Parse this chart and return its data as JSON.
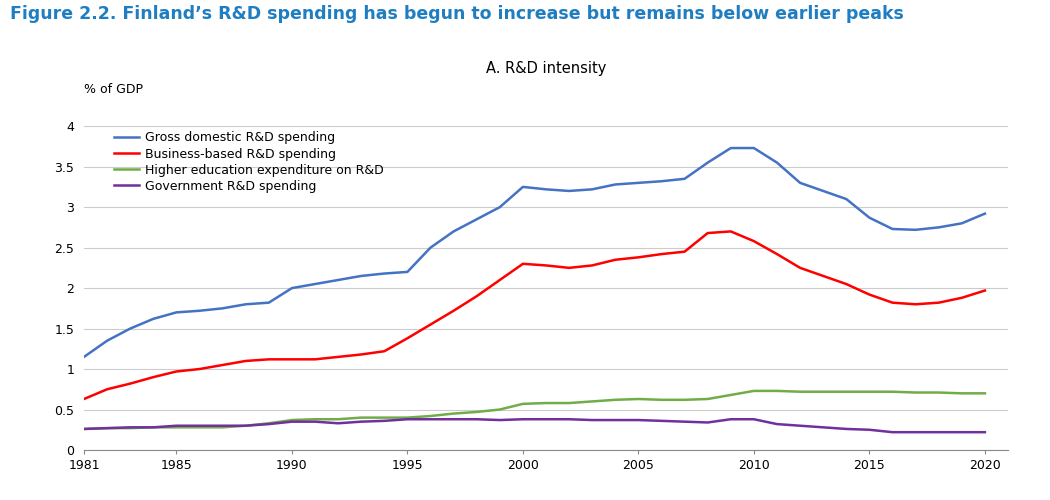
{
  "title": "Figure 2.2. Finland’s R&D spending has begun to increase but remains below earlier peaks",
  "subtitle": "A. R&D intensity",
  "ylabel": "% of GDP",
  "title_color": "#1F7EC2",
  "subtitle_color": "#000000",
  "ylim": [
    0,
    4.2
  ],
  "yticks": [
    0,
    0.5,
    1.0,
    1.5,
    2.0,
    2.5,
    3.0,
    3.5,
    4.0
  ],
  "xlim": [
    1981,
    2021
  ],
  "xticks": [
    1981,
    1985,
    1990,
    1995,
    2000,
    2005,
    2010,
    2015,
    2020
  ],
  "series": {
    "gross_domestic": {
      "label": "Gross domestic R&D spending",
      "color": "#4472C4",
      "years": [
        1981,
        1982,
        1983,
        1984,
        1985,
        1986,
        1987,
        1988,
        1989,
        1990,
        1991,
        1992,
        1993,
        1994,
        1995,
        1996,
        1997,
        1998,
        1999,
        2000,
        2001,
        2002,
        2003,
        2004,
        2005,
        2006,
        2007,
        2008,
        2009,
        2010,
        2011,
        2012,
        2013,
        2014,
        2015,
        2016,
        2017,
        2018,
        2019,
        2020
      ],
      "values": [
        1.15,
        1.35,
        1.5,
        1.62,
        1.7,
        1.72,
        1.75,
        1.8,
        1.82,
        2.0,
        2.05,
        2.1,
        2.15,
        2.18,
        2.2,
        2.5,
        2.7,
        2.85,
        3.0,
        3.25,
        3.22,
        3.2,
        3.22,
        3.28,
        3.3,
        3.32,
        3.35,
        3.55,
        3.73,
        3.73,
        3.55,
        3.3,
        3.2,
        3.1,
        2.87,
        2.73,
        2.72,
        2.75,
        2.8,
        2.92
      ]
    },
    "business": {
      "label": "Business-based R&D spending",
      "color": "#FF0000",
      "years": [
        1981,
        1982,
        1983,
        1984,
        1985,
        1986,
        1987,
        1988,
        1989,
        1990,
        1991,
        1992,
        1993,
        1994,
        1995,
        1996,
        1997,
        1998,
        1999,
        2000,
        2001,
        2002,
        2003,
        2004,
        2005,
        2006,
        2007,
        2008,
        2009,
        2010,
        2011,
        2012,
        2013,
        2014,
        2015,
        2016,
        2017,
        2018,
        2019,
        2020
      ],
      "values": [
        0.63,
        0.75,
        0.82,
        0.9,
        0.97,
        1.0,
        1.05,
        1.1,
        1.12,
        1.12,
        1.12,
        1.15,
        1.18,
        1.22,
        1.38,
        1.55,
        1.72,
        1.9,
        2.1,
        2.3,
        2.28,
        2.25,
        2.28,
        2.35,
        2.38,
        2.42,
        2.45,
        2.68,
        2.7,
        2.58,
        2.42,
        2.25,
        2.15,
        2.05,
        1.92,
        1.82,
        1.8,
        1.82,
        1.88,
        1.97
      ]
    },
    "higher_ed": {
      "label": "Higher education expenditure on R&D",
      "color": "#70AD47",
      "years": [
        1981,
        1982,
        1983,
        1984,
        1985,
        1986,
        1987,
        1988,
        1989,
        1990,
        1991,
        1992,
        1993,
        1994,
        1995,
        1996,
        1997,
        1998,
        1999,
        2000,
        2001,
        2002,
        2003,
        2004,
        2005,
        2006,
        2007,
        2008,
        2009,
        2010,
        2011,
        2012,
        2013,
        2014,
        2015,
        2016,
        2017,
        2018,
        2019,
        2020
      ],
      "values": [
        0.26,
        0.27,
        0.27,
        0.28,
        0.28,
        0.28,
        0.28,
        0.3,
        0.33,
        0.37,
        0.38,
        0.38,
        0.4,
        0.4,
        0.4,
        0.42,
        0.45,
        0.47,
        0.5,
        0.57,
        0.58,
        0.58,
        0.6,
        0.62,
        0.63,
        0.62,
        0.62,
        0.63,
        0.68,
        0.73,
        0.73,
        0.72,
        0.72,
        0.72,
        0.72,
        0.72,
        0.71,
        0.71,
        0.7,
        0.7
      ]
    },
    "government": {
      "label": "Government R&D spending",
      "color": "#7030A0",
      "years": [
        1981,
        1982,
        1983,
        1984,
        1985,
        1986,
        1987,
        1988,
        1989,
        1990,
        1991,
        1992,
        1993,
        1994,
        1995,
        1996,
        1997,
        1998,
        1999,
        2000,
        2001,
        2002,
        2003,
        2004,
        2005,
        2006,
        2007,
        2008,
        2009,
        2010,
        2011,
        2012,
        2013,
        2014,
        2015,
        2016,
        2017,
        2018,
        2019,
        2020
      ],
      "values": [
        0.26,
        0.27,
        0.28,
        0.28,
        0.3,
        0.3,
        0.3,
        0.3,
        0.32,
        0.35,
        0.35,
        0.33,
        0.35,
        0.36,
        0.38,
        0.38,
        0.38,
        0.38,
        0.37,
        0.38,
        0.38,
        0.38,
        0.37,
        0.37,
        0.37,
        0.36,
        0.35,
        0.34,
        0.38,
        0.38,
        0.32,
        0.3,
        0.28,
        0.26,
        0.25,
        0.22,
        0.22,
        0.22,
        0.22,
        0.22
      ]
    }
  },
  "background_color": "#FFFFFF",
  "grid_color": "#CCCCCC",
  "title_fontsize": 12.5,
  "subtitle_fontsize": 10.5,
  "axis_fontsize": 9,
  "legend_fontsize": 9
}
